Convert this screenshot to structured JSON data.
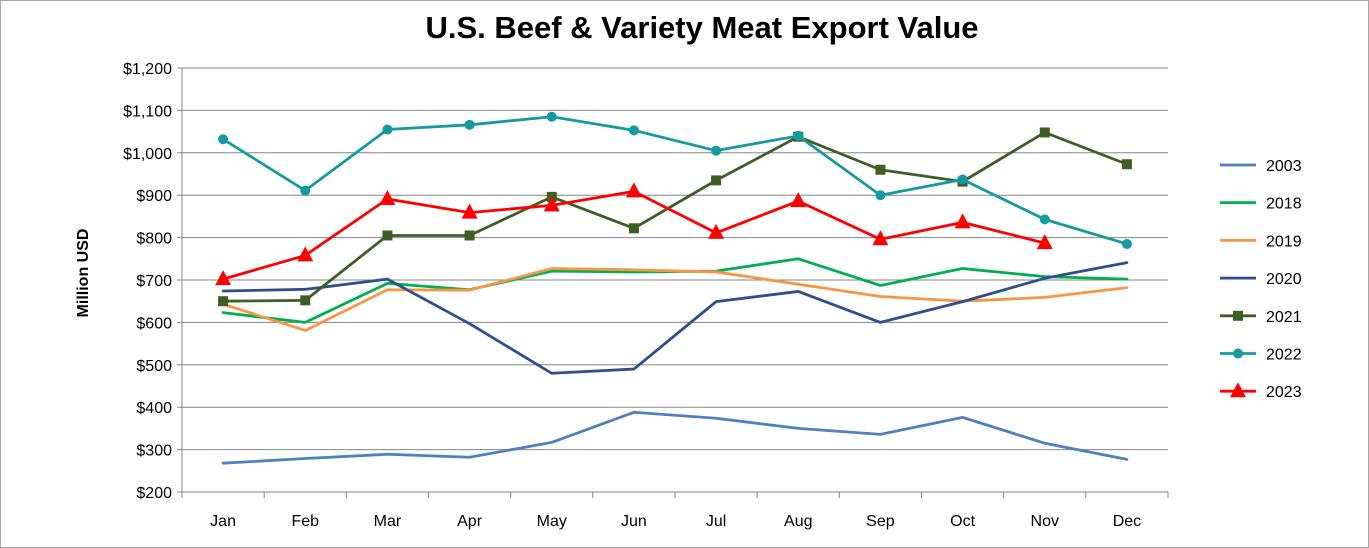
{
  "chart_data": {
    "type": "line",
    "title": "U.S. Beef & Variety Meat Export Value",
    "xlabel": "",
    "ylabel": "Million USD",
    "ylim": [
      200,
      1200
    ],
    "yticks": [
      200,
      300,
      400,
      500,
      600,
      700,
      800,
      900,
      1000,
      1100,
      1200
    ],
    "ytick_labels": [
      "$200",
      "$300",
      "$400",
      "$500",
      "$600",
      "$700",
      "$800",
      "$900",
      "$1,000",
      "$1,100",
      "$1,200"
    ],
    "categories": [
      "Jan",
      "Feb",
      "Mar",
      "Apr",
      "May",
      "Jun",
      "Jul",
      "Aug",
      "Sep",
      "Oct",
      "Nov",
      "Dec"
    ],
    "grid": "horizontal",
    "legend_position": "right",
    "series": [
      {
        "name": "2003",
        "color": "#4f81bd",
        "marker": "none",
        "values": [
          268,
          279,
          289,
          282,
          317,
          388,
          374,
          350,
          336,
          376,
          315,
          277
        ]
      },
      {
        "name": "2018",
        "color": "#00b050",
        "marker": "none",
        "values": [
          623,
          600,
          692,
          677,
          721,
          719,
          721,
          750,
          687,
          727,
          708,
          702
        ]
      },
      {
        "name": "2019",
        "color": "#f79646",
        "marker": "none",
        "values": [
          643,
          581,
          677,
          676,
          727,
          724,
          719,
          690,
          661,
          650,
          659,
          682
        ]
      },
      {
        "name": "2020",
        "color": "#2e4f8c",
        "marker": "none",
        "values": [
          674,
          678,
          702,
          597,
          480,
          490,
          649,
          673,
          600,
          649,
          704,
          741
        ]
      },
      {
        "name": "2021",
        "color": "#3e5f23",
        "marker": "square",
        "values": [
          650,
          652,
          805,
          805,
          896,
          822,
          935,
          1038,
          960,
          932,
          1048,
          973
        ]
      },
      {
        "name": "2022",
        "color": "#169aa0",
        "marker": "circle",
        "values": [
          1032,
          911,
          1055,
          1066,
          1085,
          1053,
          1005,
          1040,
          900,
          937,
          843,
          785
        ]
      },
      {
        "name": "2023",
        "color": "#ff0000",
        "marker": "triangle",
        "values": [
          702,
          758,
          891,
          859,
          876,
          909,
          811,
          886,
          796,
          836,
          787,
          null
        ]
      }
    ]
  }
}
